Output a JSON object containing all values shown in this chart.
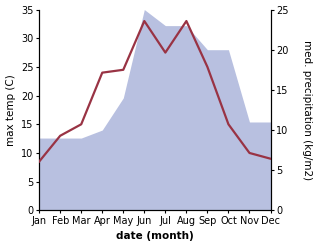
{
  "months": [
    "Jan",
    "Feb",
    "Mar",
    "Apr",
    "May",
    "Jun",
    "Jul",
    "Aug",
    "Sep",
    "Oct",
    "Nov",
    "Dec"
  ],
  "temperature": [
    8.5,
    13.0,
    15.0,
    24.0,
    24.5,
    33.0,
    27.5,
    33.0,
    25.0,
    15.0,
    10.0,
    9.0
  ],
  "precipitation": [
    9,
    9,
    9,
    10,
    14,
    25,
    23,
    23,
    20,
    20,
    11,
    11
  ],
  "temp_color": "#993344",
  "precip_color_fill": "#b8c0e0",
  "temp_ylim": [
    0,
    35
  ],
  "precip_ylim": [
    0,
    25
  ],
  "temp_yticks": [
    0,
    5,
    10,
    15,
    20,
    25,
    30,
    35
  ],
  "precip_yticks": [
    0,
    5,
    10,
    15,
    20,
    25
  ],
  "xlabel": "date (month)",
  "ylabel_left": "max temp (C)",
  "ylabel_right": "med. precipitation (kg/m2)",
  "label_fontsize": 7.5,
  "tick_fontsize": 7,
  "line_width": 1.6
}
